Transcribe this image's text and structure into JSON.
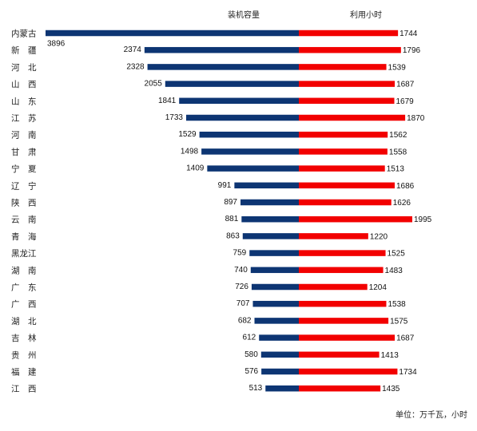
{
  "chart_data": {
    "type": "bar",
    "title": "",
    "series": [
      {
        "name": "装机容量",
        "color": "#0d3573",
        "values": [
          3896,
          2374,
          2328,
          2055,
          1841,
          1733,
          1529,
          1498,
          1409,
          991,
          897,
          881,
          863,
          759,
          740,
          726,
          707,
          682,
          612,
          580,
          576,
          513
        ]
      },
      {
        "name": "利用小时",
        "color": "#f20000",
        "values": [
          1744,
          1796,
          1539,
          1687,
          1679,
          1870,
          1562,
          1558,
          1513,
          1686,
          1626,
          1995,
          1220,
          1525,
          1483,
          1204,
          1538,
          1575,
          1687,
          1413,
          1734,
          1435
        ]
      }
    ],
    "categories": [
      "内蒙古",
      "新　疆",
      "河　北",
      "山　西",
      "山　东",
      "江　苏",
      "河　南",
      "甘　肃",
      "宁　夏",
      "辽　宁",
      "陕　西",
      "云　南",
      "青　海",
      "黑龙江",
      "湖　南",
      "广　东",
      "广　西",
      "湖　北",
      "吉　林",
      "贵　州",
      "福　建",
      "江　西"
    ],
    "left_scale_max": 3896,
    "right_scale_max": 1995,
    "legend_position": "top",
    "grid": false
  },
  "unit_label": "单位：万千瓦，小时"
}
